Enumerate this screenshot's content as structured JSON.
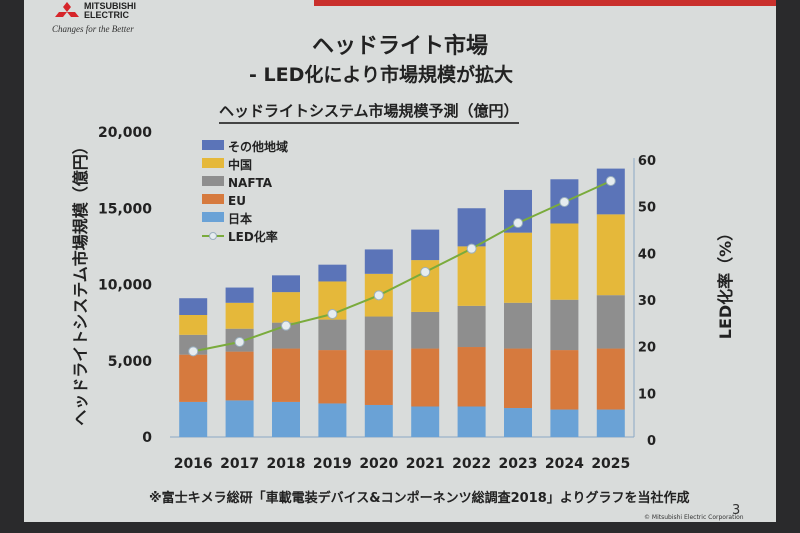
{
  "header": {
    "logo_text": "MITSUBISHI ELECTRIC",
    "tagline": "Changes for the Better",
    "title": "ヘッドライト市場",
    "subtitle": "- LED化により市場規模が拡大"
  },
  "footer": {
    "source": "※富士キメラ総研「車載電装デバイス&コンポーネンツ総調査2018」よりグラフを当社作成",
    "page": "3",
    "copyright": "© Mitsubishi Electric Corporation"
  },
  "colors": {
    "accent": "#c9302c",
    "other": "#5b74b8",
    "china": "#e5b83a",
    "nafta": "#8e8e8e",
    "eu": "#d67a3e",
    "japan": "#6aa2d6",
    "line": "#7aab3c"
  },
  "chart_data": {
    "type": "bar",
    "stacked": true,
    "title": "ヘッドライトシステム市場規模予測（億円）",
    "ylabel": "ヘッドライトシステム市場規模（億円）",
    "y2label": "LED化率（%）",
    "ylim": [
      0,
      20000
    ],
    "yticks": [
      "0",
      "5,000",
      "10,000",
      "15,000",
      "20,000"
    ],
    "y2lim": [
      0,
      60
    ],
    "y2ticks": [
      "0",
      "10",
      "20",
      "30",
      "40",
      "50",
      "60"
    ],
    "categories": [
      "2016",
      "2017",
      "2018",
      "2019",
      "2020",
      "2021",
      "2022",
      "2023",
      "2024",
      "2025"
    ],
    "legend_position": "top-left",
    "series": [
      {
        "name": "日本",
        "color": "#6aa2d6",
        "values": [
          2300,
          2400,
          2300,
          2200,
          2100,
          2000,
          2000,
          1900,
          1800,
          1800
        ]
      },
      {
        "name": "EU",
        "color": "#d67a3e",
        "values": [
          3100,
          3200,
          3500,
          3500,
          3600,
          3800,
          3900,
          3900,
          3900,
          4000
        ]
      },
      {
        "name": "NAFTA",
        "color": "#8e8e8e",
        "values": [
          1300,
          1500,
          1700,
          2000,
          2200,
          2400,
          2700,
          3000,
          3300,
          3500
        ]
      },
      {
        "name": "中国",
        "color": "#e5b83a",
        "values": [
          1300,
          1700,
          2000,
          2500,
          2800,
          3400,
          3900,
          4600,
          5000,
          5300
        ]
      },
      {
        "name": "その他地域",
        "color": "#5b74b8",
        "values": [
          1100,
          1000,
          1100,
          1100,
          1600,
          2000,
          2500,
          2800,
          2900,
          3000
        ]
      }
    ],
    "line_series": {
      "name": "LED化率",
      "axis": "right",
      "color": "#7aab3c",
      "values": [
        19,
        21,
        24.5,
        27,
        31,
        36,
        41,
        46.5,
        51,
        55.5
      ]
    },
    "legend_order": [
      "その他地域",
      "中国",
      "NAFTA",
      "EU",
      "日本",
      "LED化率"
    ]
  }
}
